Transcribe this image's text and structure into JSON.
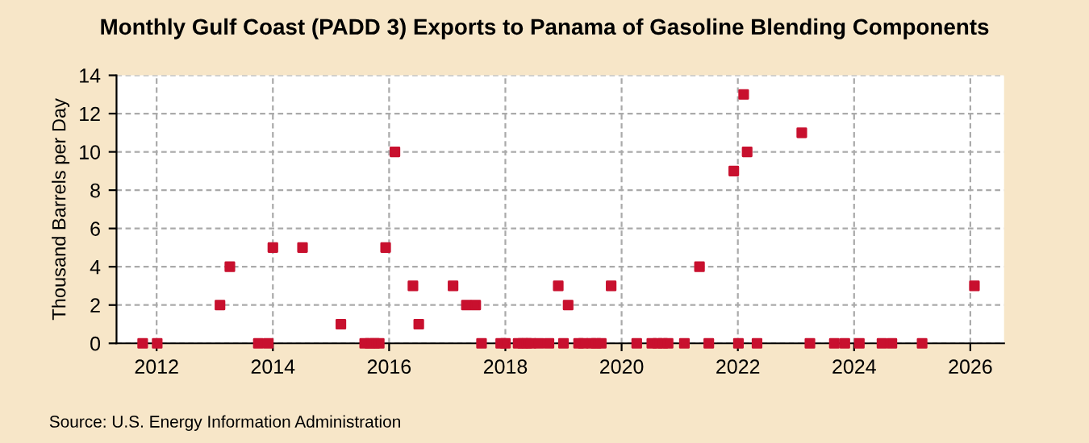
{
  "chart_data": {
    "type": "scatter",
    "title": "Monthly Gulf Coast (PADD 3) Exports to Panama of Gasoline Blending Components",
    "ylabel": "Thousand Barrels per Day",
    "annotations": [
      "Source: U.S. Energy Information Administration"
    ],
    "x": [
      2011.76,
      2012.01,
      2013.09,
      2013.26,
      2013.75,
      2013.92,
      2014.0,
      2014.51,
      2015.17,
      2015.58,
      2015.67,
      2015.75,
      2015.83,
      2015.94,
      2016.1,
      2016.41,
      2016.51,
      2017.1,
      2017.33,
      2017.49,
      2017.59,
      2017.92,
      2018.0,
      2018.22,
      2018.3,
      2018.37,
      2018.44,
      2018.58,
      2018.75,
      2018.91,
      2019.0,
      2019.08,
      2019.26,
      2019.34,
      2019.48,
      2019.56,
      2019.65,
      2019.82,
      2020.26,
      2020.52,
      2020.62,
      2020.71,
      2020.8,
      2021.08,
      2021.34,
      2021.5,
      2021.93,
      2022.01,
      2022.1,
      2022.16,
      2022.33,
      2023.1,
      2023.24,
      2023.66,
      2023.84,
      2024.09,
      2024.48,
      2024.65,
      2025.17,
      2026.07
    ],
    "series": [
      {
        "color": "#c8102e",
        "values": [
          0,
          0,
          2,
          4,
          0,
          0,
          5,
          5,
          1,
          0,
          0,
          0,
          0,
          5,
          10,
          3,
          1,
          3,
          2,
          2,
          0,
          0,
          0,
          0,
          0,
          0,
          0,
          0,
          0,
          3,
          0,
          2,
          0,
          0,
          0,
          0,
          0,
          3,
          0,
          0,
          0,
          0,
          0,
          0,
          4,
          0,
          9,
          0,
          13,
          10,
          0,
          11,
          0,
          0,
          0,
          0,
          0,
          0,
          0,
          3
        ]
      }
    ],
    "xlim": [
      2011.31,
      2026.58
    ],
    "xticks": [
      2012,
      2014,
      2016,
      2018,
      2020,
      2022,
      2024,
      2026
    ],
    "ylim": [
      0,
      14
    ],
    "yticks": [
      0,
      2,
      4,
      6,
      8,
      10,
      12,
      14
    ],
    "grid": true,
    "marker": "square"
  }
}
